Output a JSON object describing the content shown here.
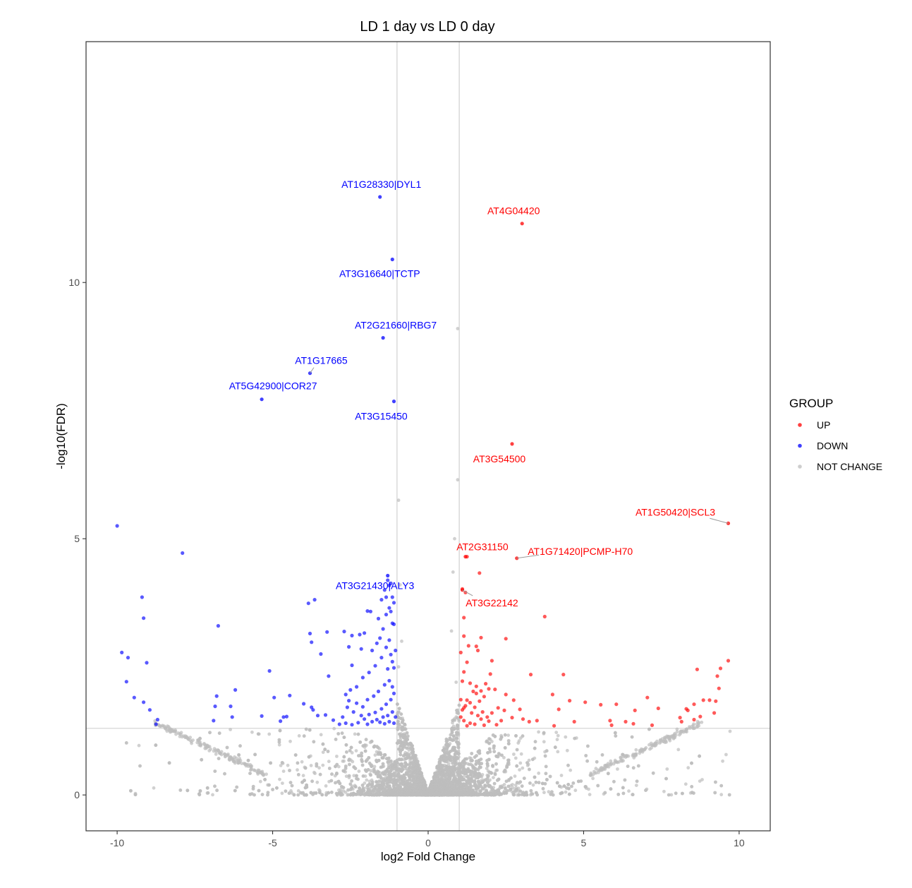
{
  "chart_data": {
    "type": "scatter",
    "title": "LD 1 day vs LD 0 day",
    "xlabel": "log2 Fold Change",
    "ylabel": "-log10(FDR)",
    "xlim": [
      -11,
      11
    ],
    "ylim": [
      -0.7,
      14.7
    ],
    "xticks": [
      -10,
      -5,
      0,
      5,
      10
    ],
    "yticks": [
      0,
      5,
      10
    ],
    "grid": false,
    "thresholds": {
      "vlines": [
        -1,
        1
      ],
      "hline": 1.3
    },
    "legend": {
      "title": "GROUP",
      "position": "right",
      "entries": [
        {
          "key": "UP",
          "label": "UP",
          "color": "#ff0000"
        },
        {
          "key": "DOWN",
          "label": "DOWN",
          "color": "#0000ff"
        },
        {
          "key": "NOT CHANGE",
          "label": "NOT CHANGE",
          "color": "#bebebe"
        }
      ]
    },
    "labeled_points": [
      {
        "label": "AT1G28330|DYL1",
        "x": -1.55,
        "y": 11.67,
        "group": "DOWN"
      },
      {
        "label": "AT4G04420",
        "x": 3.02,
        "y": 11.15,
        "group": "UP"
      },
      {
        "label": "AT3G16640|TCTP",
        "x": -1.15,
        "y": 10.45,
        "group": "DOWN"
      },
      {
        "label": "AT2G21660|RBG7",
        "x": -1.45,
        "y": 8.92,
        "group": "DOWN"
      },
      {
        "label": "AT1G17665",
        "x": -3.8,
        "y": 8.23,
        "group": "DOWN"
      },
      {
        "label": "AT5G42900|COR27",
        "x": -5.35,
        "y": 7.72,
        "group": "DOWN"
      },
      {
        "label": "AT3G15450",
        "x": -1.1,
        "y": 7.68,
        "group": "DOWN"
      },
      {
        "label": "AT3G54500",
        "x": 2.7,
        "y": 6.85,
        "group": "UP"
      },
      {
        "label": "AT1G50420|SCL3",
        "x": 9.65,
        "y": 5.3,
        "group": "UP"
      },
      {
        "label": "AT1G71420|PCMP-H70",
        "x": 2.85,
        "y": 4.62,
        "group": "UP"
      },
      {
        "label": "AT2G31150",
        "x": 1.2,
        "y": 4.65,
        "group": "UP"
      },
      {
        "label": "AT3G21430|ALY3",
        "x": -1.3,
        "y": 4.28,
        "group": "DOWN"
      },
      {
        "label": "AT3G22142",
        "x": 1.1,
        "y": 4.0,
        "group": "UP"
      }
    ],
    "series": [
      {
        "group": "DOWN",
        "points": [
          [
            -10.0,
            5.25
          ],
          [
            -7.9,
            4.72
          ],
          [
            -9.2,
            3.86
          ],
          [
            -9.15,
            3.45
          ],
          [
            -9.85,
            2.78
          ],
          [
            -9.65,
            2.68
          ],
          [
            -9.05,
            2.58
          ],
          [
            -9.7,
            2.21
          ],
          [
            -9.45,
            1.9
          ],
          [
            -9.15,
            1.81
          ],
          [
            -8.95,
            1.66
          ],
          [
            -8.7,
            1.47
          ],
          [
            -8.75,
            1.38
          ],
          [
            -6.75,
            3.3
          ],
          [
            -6.8,
            1.93
          ],
          [
            -6.85,
            1.73
          ],
          [
            -6.35,
            1.73
          ],
          [
            -6.9,
            1.45
          ],
          [
            -6.3,
            1.52
          ],
          [
            -5.1,
            2.42
          ],
          [
            -4.95,
            1.9
          ],
          [
            -5.35,
            1.54
          ],
          [
            -4.55,
            1.53
          ],
          [
            -4.75,
            1.44
          ],
          [
            -4.65,
            1.52
          ],
          [
            -4.45,
            1.94
          ],
          [
            -4.0,
            1.78
          ],
          [
            -3.75,
            1.71
          ],
          [
            -3.7,
            1.66
          ],
          [
            -3.55,
            1.55
          ],
          [
            -3.3,
            1.56
          ],
          [
            -3.05,
            1.46
          ],
          [
            -3.85,
            3.74
          ],
          [
            -3.65,
            3.81
          ],
          [
            -3.8,
            3.15
          ],
          [
            -3.75,
            2.98
          ],
          [
            -3.25,
            3.18
          ],
          [
            -3.45,
            2.75
          ],
          [
            -3.2,
            2.32
          ],
          [
            -2.7,
            3.19
          ],
          [
            -2.55,
            2.89
          ],
          [
            -2.45,
            2.53
          ],
          [
            -2.45,
            3.11
          ],
          [
            -2.2,
            3.13
          ],
          [
            -2.15,
            2.85
          ],
          [
            -2.05,
            3.16
          ],
          [
            -1.95,
            3.59
          ],
          [
            -1.85,
            3.58
          ],
          [
            -1.6,
            3.44
          ],
          [
            -1.5,
            3.81
          ],
          [
            -1.4,
            4.0
          ],
          [
            -1.3,
            4.19
          ],
          [
            -1.25,
            4.09
          ],
          [
            -1.2,
            3.58
          ],
          [
            -1.15,
            3.35
          ],
          [
            -1.1,
            3.33
          ],
          [
            -1.35,
            3.86
          ],
          [
            -1.15,
            3.86
          ],
          [
            -1.25,
            3.65
          ],
          [
            -1.35,
            3.52
          ],
          [
            -1.8,
            2.82
          ],
          [
            -1.65,
            2.96
          ],
          [
            -1.55,
            3.06
          ],
          [
            -1.35,
            2.88
          ],
          [
            -1.2,
            2.74
          ],
          [
            -1.15,
            2.6
          ],
          [
            -1.3,
            2.46
          ],
          [
            -1.5,
            2.68
          ],
          [
            -1.7,
            2.52
          ],
          [
            -1.9,
            2.39
          ],
          [
            -2.1,
            2.29
          ],
          [
            -2.3,
            2.11
          ],
          [
            -2.5,
            2.05
          ],
          [
            -2.65,
            1.96
          ],
          [
            -2.55,
            1.84
          ],
          [
            -2.3,
            1.79
          ],
          [
            -2.1,
            1.72
          ],
          [
            -1.95,
            1.86
          ],
          [
            -1.75,
            1.93
          ],
          [
            -1.6,
            2.02
          ],
          [
            -1.4,
            2.15
          ],
          [
            -1.25,
            2.23
          ],
          [
            -1.15,
            2.11
          ],
          [
            -1.1,
            1.98
          ],
          [
            -1.2,
            1.86
          ],
          [
            -1.35,
            1.77
          ],
          [
            -1.5,
            1.68
          ],
          [
            -1.7,
            1.61
          ],
          [
            -1.9,
            1.57
          ],
          [
            -2.05,
            1.48
          ],
          [
            -2.25,
            1.41
          ],
          [
            -2.45,
            1.37
          ],
          [
            -2.65,
            1.4
          ],
          [
            -2.85,
            1.38
          ],
          [
            -2.75,
            1.52
          ],
          [
            -1.55,
            1.42
          ],
          [
            -1.4,
            1.39
          ],
          [
            -1.25,
            1.43
          ],
          [
            -1.1,
            1.4
          ],
          [
            -1.05,
            1.52
          ],
          [
            -1.15,
            1.62
          ],
          [
            -1.3,
            1.55
          ],
          [
            -1.45,
            1.52
          ],
          [
            -1.65,
            1.47
          ],
          [
            -1.8,
            1.43
          ],
          [
            -1.95,
            1.38
          ],
          [
            -2.15,
            1.55
          ],
          [
            -2.4,
            1.62
          ],
          [
            -2.6,
            1.71
          ],
          [
            -1.1,
            2.48
          ],
          [
            -1.05,
            2.82
          ],
          [
            -1.25,
            3.02
          ],
          [
            -1.45,
            3.24
          ],
          [
            -1.1,
            3.75
          ],
          [
            -1.2,
            4.13
          ],
          [
            -6.2,
            2.05
          ]
        ]
      },
      {
        "group": "UP",
        "points": [
          [
            1.25,
            4.65
          ],
          [
            1.65,
            4.33
          ],
          [
            1.1,
            4.02
          ],
          [
            1.2,
            3.95
          ],
          [
            1.15,
            3.46
          ],
          [
            3.75,
            3.48
          ],
          [
            1.15,
            3.1
          ],
          [
            1.3,
            2.91
          ],
          [
            1.55,
            2.9
          ],
          [
            1.7,
            3.07
          ],
          [
            1.6,
            2.82
          ],
          [
            2.5,
            3.05
          ],
          [
            2.05,
            2.62
          ],
          [
            1.05,
            2.78
          ],
          [
            1.25,
            2.59
          ],
          [
            1.15,
            2.4
          ],
          [
            1.1,
            2.22
          ],
          [
            1.35,
            2.18
          ],
          [
            1.45,
            2.02
          ],
          [
            1.55,
            2.12
          ],
          [
            1.7,
            2.03
          ],
          [
            1.85,
            2.17
          ],
          [
            1.95,
            2.07
          ],
          [
            2.0,
            2.36
          ],
          [
            2.15,
            2.06
          ],
          [
            2.5,
            1.96
          ],
          [
            3.3,
            2.35
          ],
          [
            4.35,
            2.35
          ],
          [
            4.0,
            1.96
          ],
          [
            4.55,
            1.84
          ],
          [
            4.2,
            1.67
          ],
          [
            5.05,
            1.81
          ],
          [
            5.55,
            1.76
          ],
          [
            6.05,
            1.77
          ],
          [
            7.05,
            1.9
          ],
          [
            6.65,
            1.65
          ],
          [
            7.4,
            1.69
          ],
          [
            8.1,
            1.51
          ],
          [
            8.35,
            1.65
          ],
          [
            8.3,
            1.68
          ],
          [
            8.55,
            1.77
          ],
          [
            8.85,
            1.85
          ],
          [
            9.05,
            1.85
          ],
          [
            9.25,
            1.83
          ],
          [
            9.35,
            2.08
          ],
          [
            9.4,
            2.47
          ],
          [
            9.65,
            2.62
          ],
          [
            9.3,
            2.32
          ],
          [
            8.65,
            2.45
          ],
          [
            9.2,
            1.6
          ],
          [
            8.75,
            1.53
          ],
          [
            8.55,
            1.47
          ],
          [
            8.15,
            1.43
          ],
          [
            7.2,
            1.36
          ],
          [
            6.6,
            1.39
          ],
          [
            6.35,
            1.43
          ],
          [
            5.9,
            1.36
          ],
          [
            4.7,
            1.43
          ],
          [
            4.05,
            1.35
          ],
          [
            3.5,
            1.45
          ],
          [
            3.25,
            1.43
          ],
          [
            2.7,
            1.51
          ],
          [
            2.75,
            1.85
          ],
          [
            2.45,
            1.65
          ],
          [
            2.25,
            1.7
          ],
          [
            2.2,
            1.37
          ],
          [
            1.95,
            1.44
          ],
          [
            1.8,
            1.36
          ],
          [
            1.7,
            1.48
          ],
          [
            1.6,
            1.55
          ],
          [
            1.5,
            1.38
          ],
          [
            1.35,
            1.4
          ],
          [
            1.25,
            1.35
          ],
          [
            1.15,
            1.45
          ],
          [
            1.05,
            1.52
          ],
          [
            1.1,
            1.66
          ],
          [
            1.2,
            1.74
          ],
          [
            1.35,
            1.8
          ],
          [
            1.5,
            1.71
          ],
          [
            1.65,
            1.83
          ],
          [
            1.8,
            1.92
          ],
          [
            1.25,
            1.85
          ],
          [
            1.05,
            1.86
          ],
          [
            1.4,
            1.6
          ],
          [
            1.55,
            1.98
          ],
          [
            1.75,
            1.62
          ],
          [
            1.9,
            1.52
          ],
          [
            2.05,
            1.6
          ],
          [
            2.35,
            1.45
          ],
          [
            1.15,
            1.7
          ],
          [
            5.85,
            1.45
          ],
          [
            3.05,
            1.48
          ],
          [
            2.95,
            1.67
          ]
        ]
      }
    ],
    "not_change_note_count": 6000
  }
}
